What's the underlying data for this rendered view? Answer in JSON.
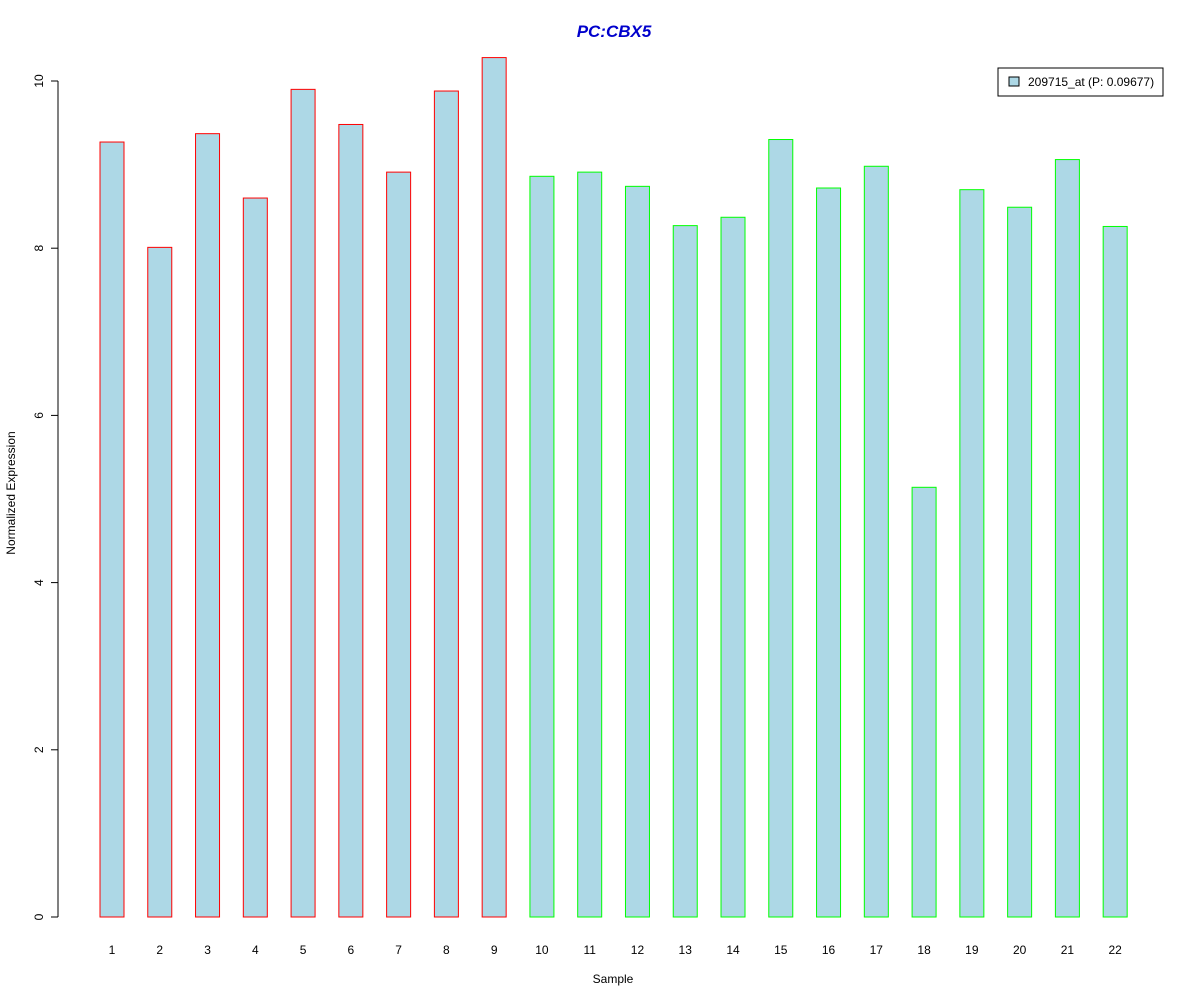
{
  "chart_data": {
    "type": "bar",
    "title": "PC:CBX5",
    "xlabel": "Sample",
    "ylabel": "Normalized Expression",
    "categories": [
      "1",
      "2",
      "3",
      "4",
      "5",
      "6",
      "7",
      "8",
      "9",
      "10",
      "11",
      "12",
      "13",
      "14",
      "15",
      "16",
      "17",
      "18",
      "19",
      "20",
      "21",
      "22"
    ],
    "series": [
      {
        "name": "209715_at (P: 0.09677)",
        "values": [
          9.27,
          8.01,
          9.37,
          8.6,
          9.9,
          9.48,
          8.91,
          9.88,
          10.28,
          8.86,
          8.91,
          8.74,
          8.27,
          8.37,
          9.3,
          8.72,
          8.98,
          5.14,
          8.7,
          8.49,
          9.06,
          8.26
        ]
      }
    ],
    "yticks": [
      0,
      2,
      4,
      6,
      8,
      10
    ],
    "ylim": [
      0,
      10.3
    ],
    "grid": false,
    "legend_position": "top-right",
    "colors": {
      "fill": "#add8e6",
      "group_a_border": "#ff0000",
      "group_b_border": "#00ff00",
      "title": "#0000cc",
      "axis": "#000000"
    },
    "group_a_count": 9
  }
}
